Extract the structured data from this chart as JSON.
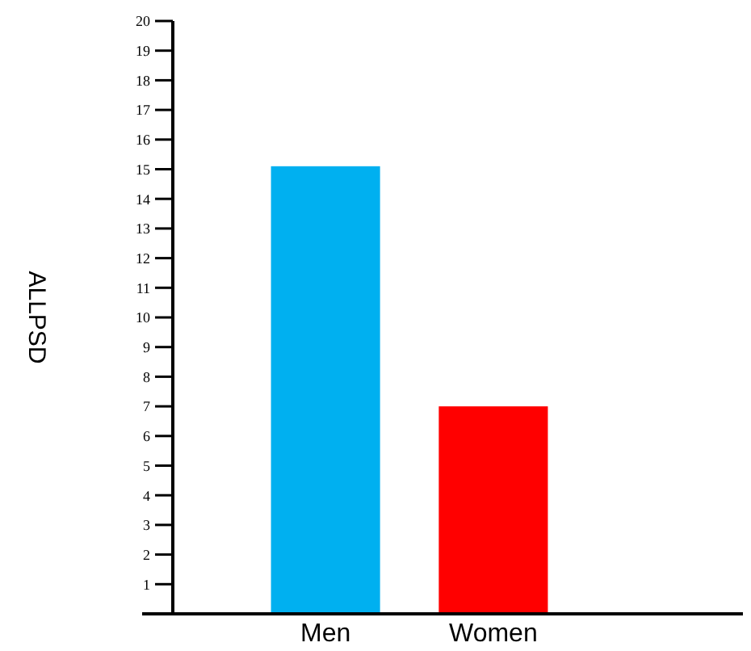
{
  "chart_data": {
    "type": "bar",
    "ylabel": "ALLPSD",
    "categories": [
      "Men",
      "Women"
    ],
    "values": [
      15.1,
      7.0
    ],
    "colors": [
      "#00b0f0",
      "#ff0000"
    ],
    "ylim": [
      0,
      20
    ],
    "yticks": [
      1,
      2,
      3,
      4,
      5,
      6,
      7,
      8,
      9,
      10,
      11,
      12,
      13,
      14,
      15,
      16,
      17,
      18,
      19,
      20
    ],
    "grid": false
  }
}
